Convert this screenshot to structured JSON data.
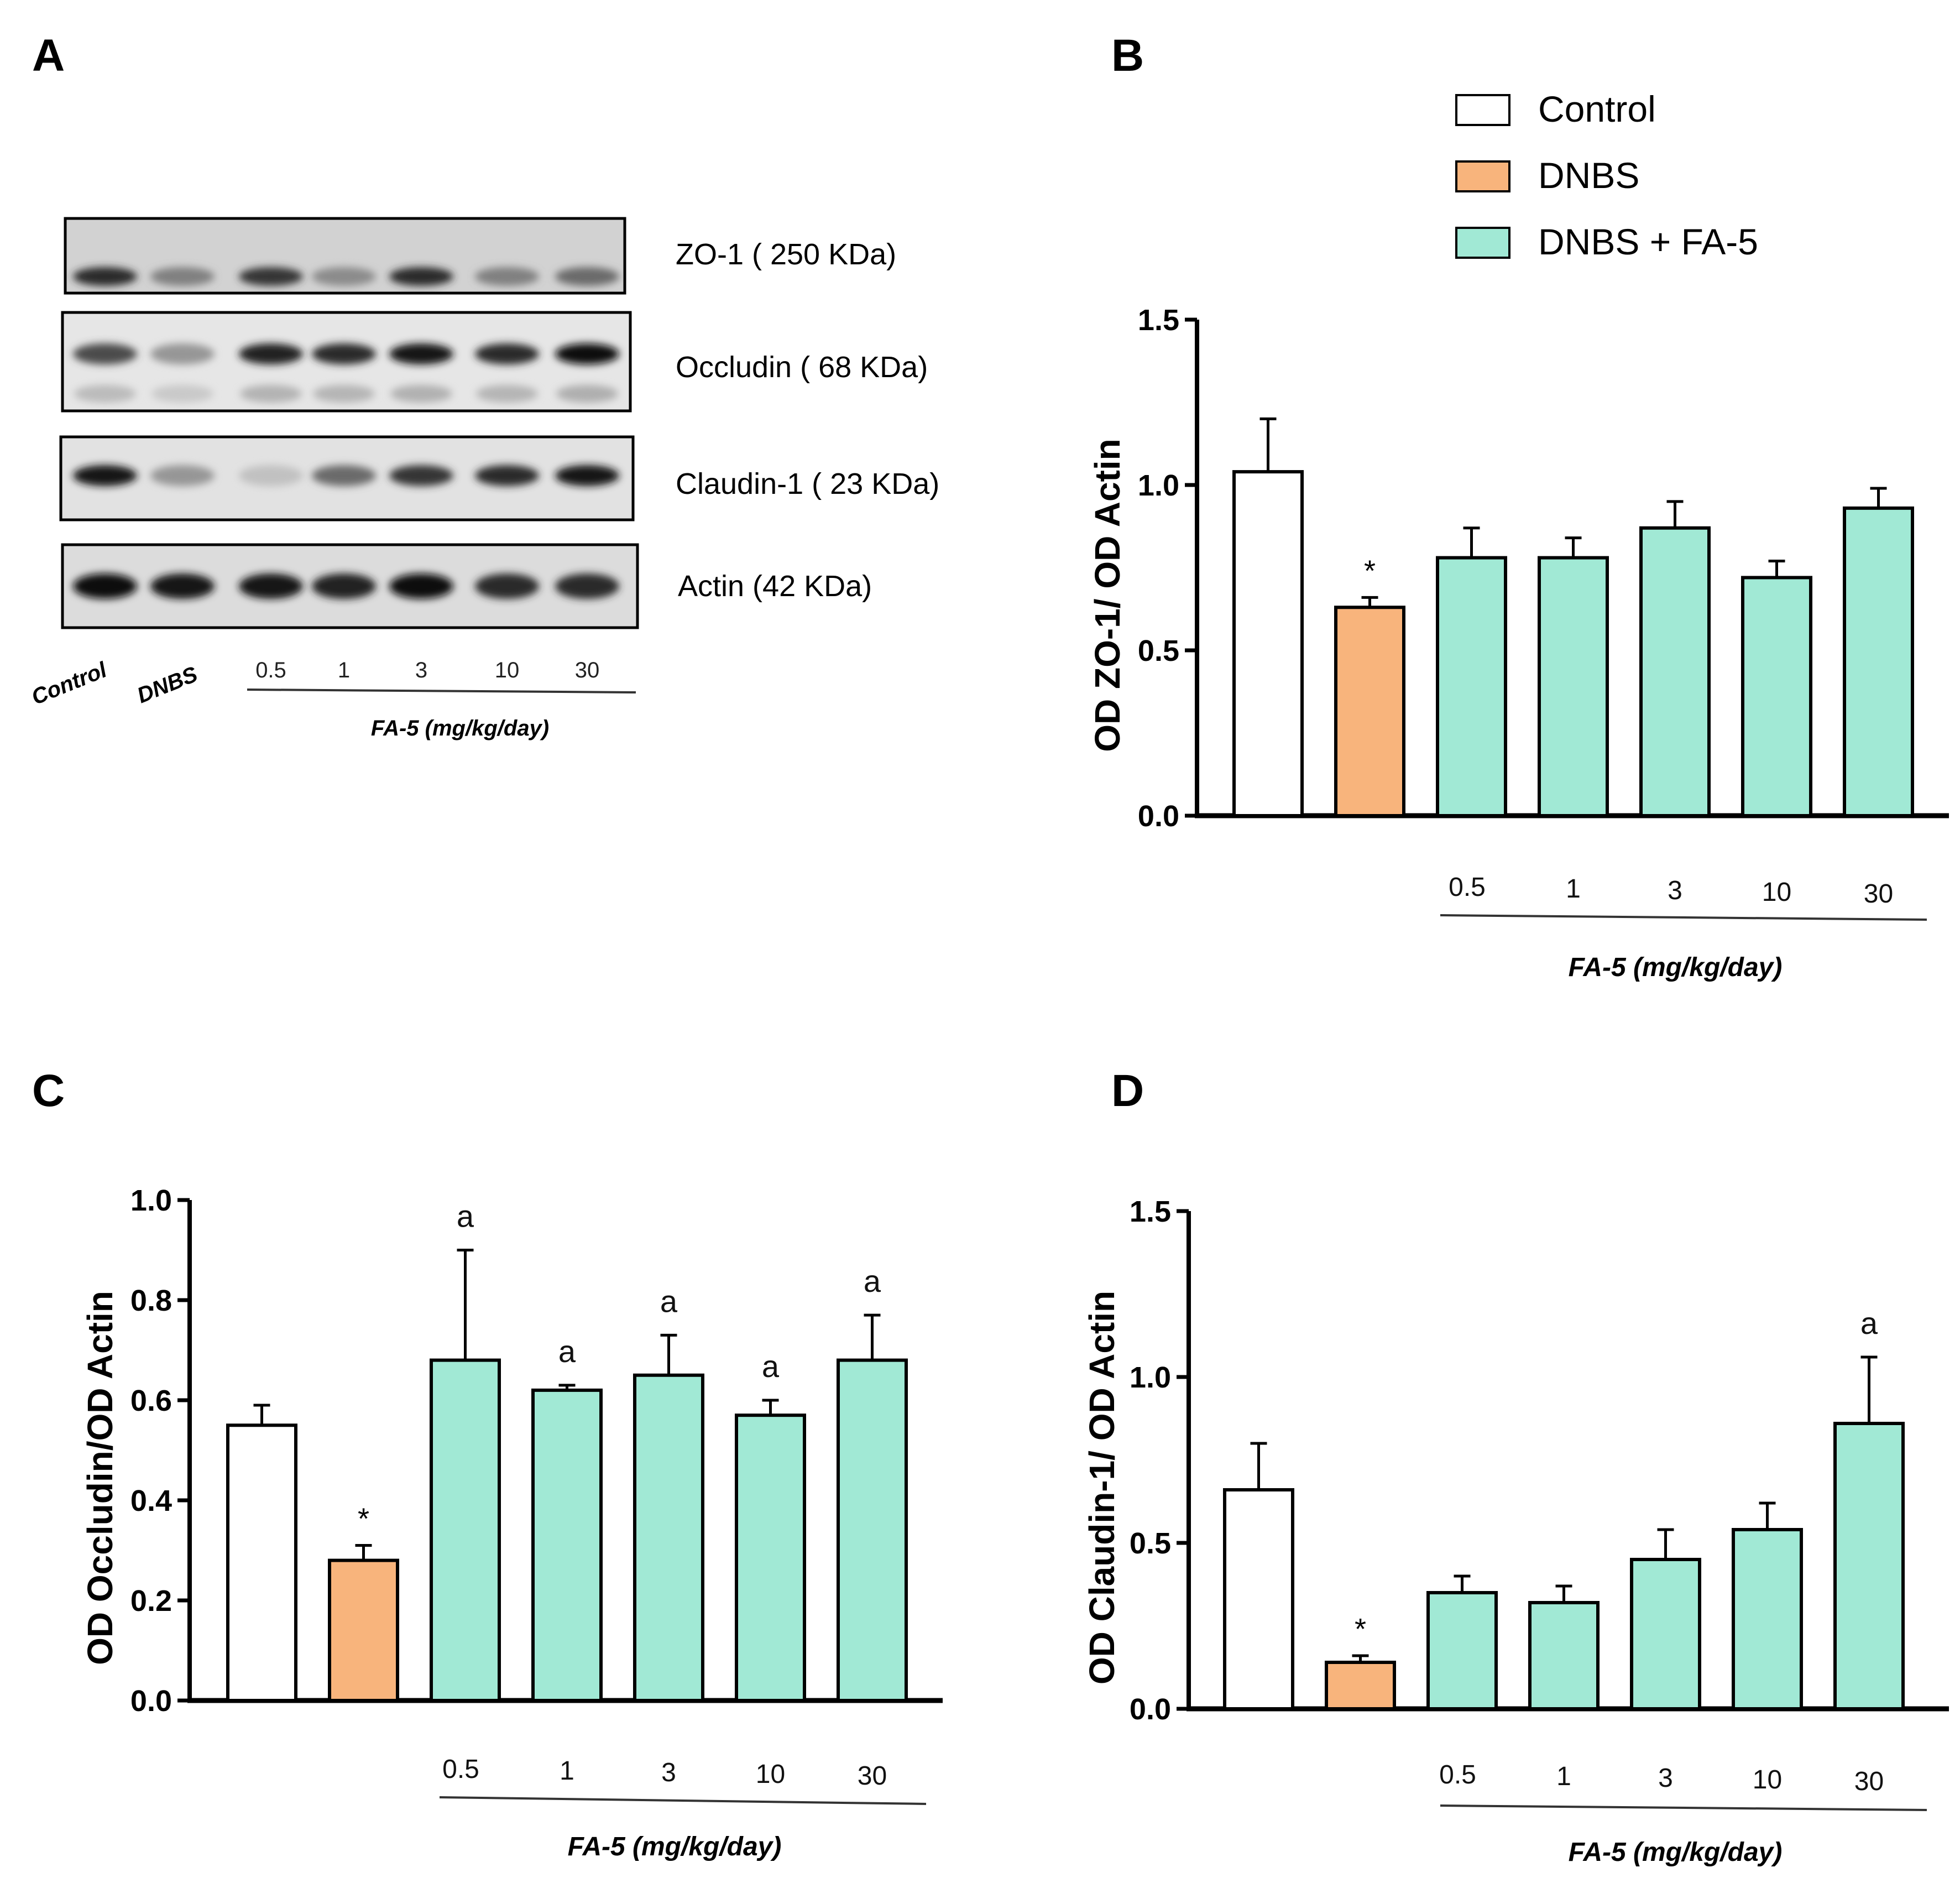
{
  "panels": {
    "a": "A",
    "b": "B",
    "c": "C",
    "d": "D"
  },
  "colors": {
    "control": "#ffffff",
    "dnbs": "#f8b47c",
    "fa5": "#a1e9d5",
    "stroke": "#000000"
  },
  "blot": {
    "bands": [
      {
        "label": "ZO-1 ( 250 KDa)",
        "intensity": [
          0.85,
          0.45,
          0.8,
          0.4,
          0.85,
          0.45,
          0.55
        ]
      },
      {
        "label": "Occludin  ( 68 KDa)",
        "intensity": [
          0.7,
          0.35,
          0.9,
          0.85,
          0.95,
          0.85,
          1.0
        ]
      },
      {
        "label": "Claudin-1  ( 23 KDa)",
        "intensity": [
          0.95,
          0.35,
          0.15,
          0.55,
          0.8,
          0.85,
          0.95
        ]
      },
      {
        "label": "Actin (42 KDa)",
        "intensity": [
          1.0,
          0.95,
          0.95,
          0.9,
          1.0,
          0.85,
          0.85
        ]
      }
    ],
    "lanes": [
      "Control",
      "DNBS"
    ],
    "doses": [
      "0.5",
      "1",
      "3",
      "10",
      "30"
    ],
    "dose_label": "FA-5 (mg/kg/day)"
  },
  "legend": {
    "items": [
      {
        "label": "Control",
        "color": "#ffffff"
      },
      {
        "label": "DNBS",
        "color": "#f8b47c"
      },
      {
        "label": "DNBS + FA-5",
        "color": "#a1e9d5"
      }
    ]
  },
  "chart_data": [
    {
      "panel": "B",
      "type": "bar",
      "categories": [
        "Control",
        "DNBS",
        "0.5",
        "1",
        "3",
        "10",
        "30"
      ],
      "values": [
        1.04,
        0.63,
        0.78,
        0.78,
        0.87,
        0.72,
        0.93
      ],
      "errors": [
        0.16,
        0.03,
        0.09,
        0.06,
        0.08,
        0.05,
        0.06
      ],
      "annotations": [
        "",
        "*",
        "",
        "",
        "",
        "",
        ""
      ],
      "ylabel": "OD ZO-1/ OD Actin",
      "ylim": [
        0,
        1.5
      ],
      "yticks": [
        "0.0",
        "0.5",
        "1.0",
        "1.5"
      ],
      "xlabel": "FA-5 (mg/kg/day)"
    },
    {
      "panel": "C",
      "type": "bar",
      "categories": [
        "Control",
        "DNBS",
        "0.5",
        "1",
        "3",
        "10",
        "30"
      ],
      "values": [
        0.55,
        0.28,
        0.68,
        0.62,
        0.65,
        0.57,
        0.68
      ],
      "errors": [
        0.04,
        0.03,
        0.22,
        0.01,
        0.08,
        0.03,
        0.09
      ],
      "annotations": [
        "",
        "*",
        "a",
        "a",
        "a",
        "a",
        "a"
      ],
      "ylabel": "OD Occludin/OD Actin",
      "ylim": [
        0,
        1.0
      ],
      "yticks": [
        "0.0",
        "0.2",
        "0.4",
        "0.6",
        "0.8",
        "1.0"
      ],
      "xlabel": "FA-5 (mg/kg/day)"
    },
    {
      "panel": "D",
      "type": "bar",
      "categories": [
        "Control",
        "DNBS",
        "0.5",
        "1",
        "3",
        "10",
        "30"
      ],
      "values": [
        0.66,
        0.14,
        0.35,
        0.32,
        0.45,
        0.54,
        0.86
      ],
      "errors": [
        0.14,
        0.02,
        0.05,
        0.05,
        0.09,
        0.08,
        0.2
      ],
      "annotations": [
        "",
        "*",
        "",
        "",
        "",
        "",
        "a"
      ],
      "ylabel": "OD Claudin-1/ OD Actin",
      "ylim": [
        0,
        1.5
      ],
      "yticks": [
        "0.0",
        "0.5",
        "1.0",
        "1.5"
      ],
      "xlabel": "FA-5 (mg/kg/day)"
    }
  ]
}
